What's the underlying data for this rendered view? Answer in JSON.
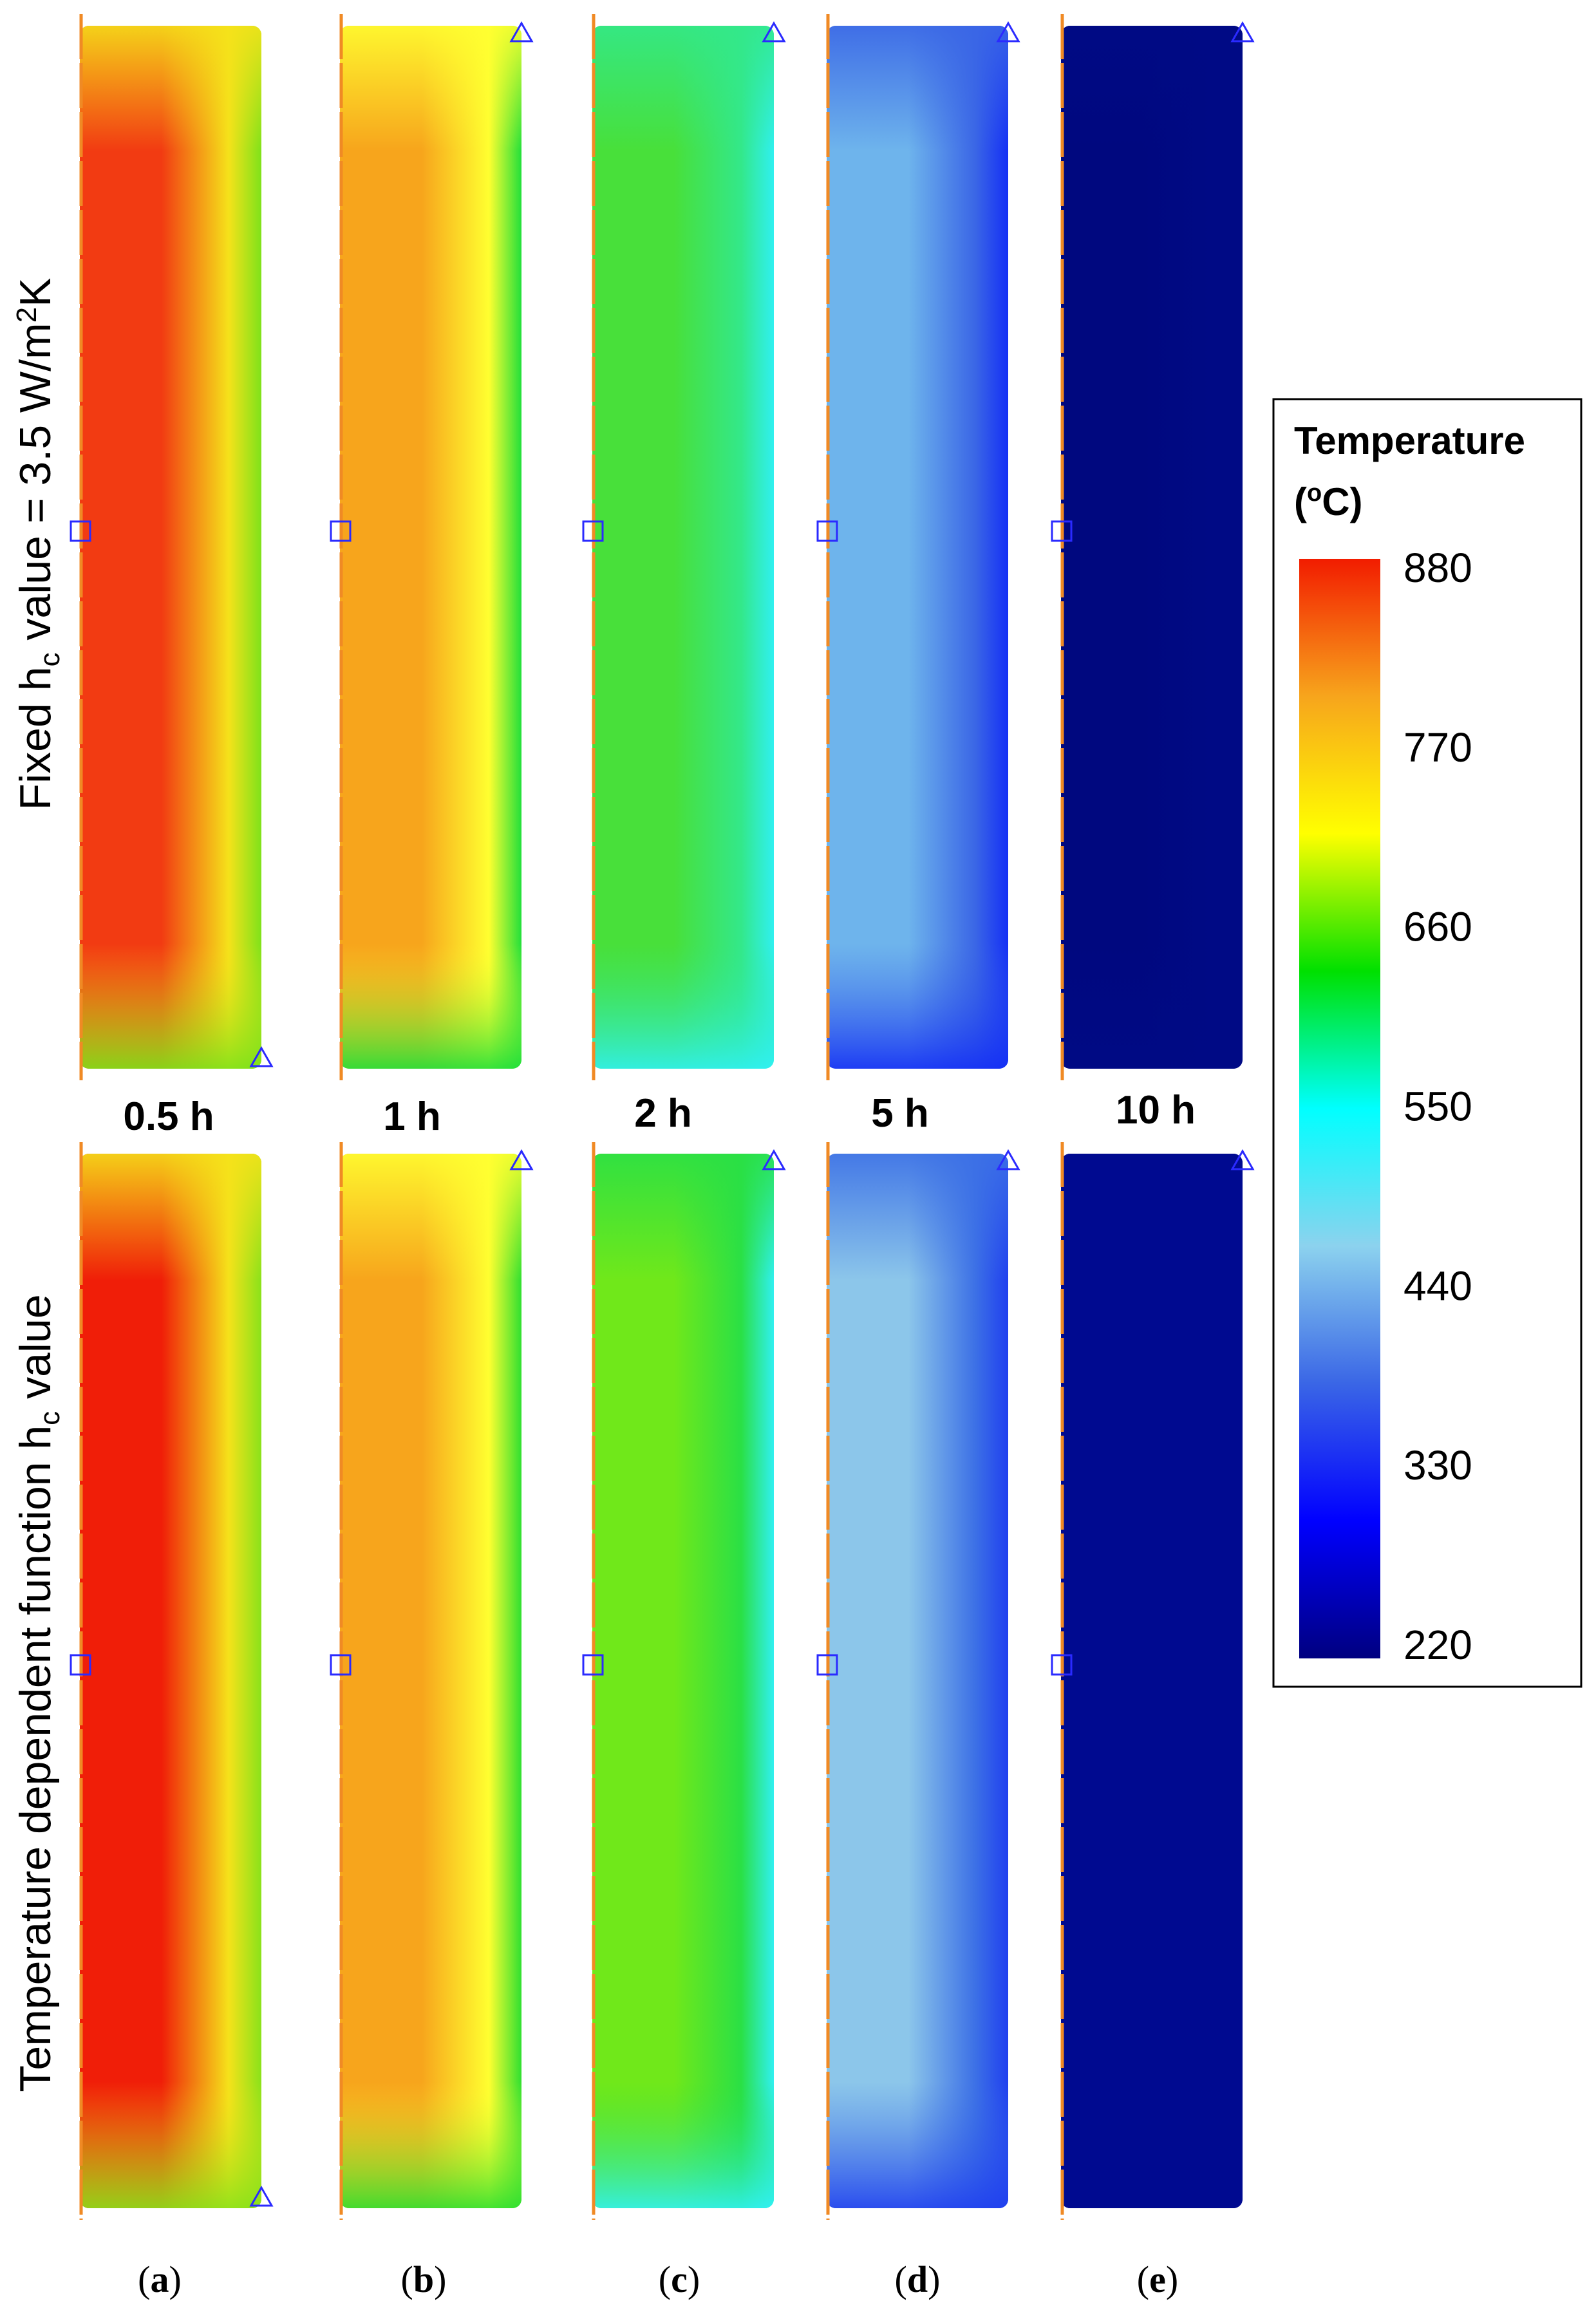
{
  "figure": {
    "row_labels": [
      {
        "pre": "Fixed h",
        "sub": "c",
        "post": " value = 3.5 W/m",
        "sup": "2",
        "post2": "K"
      },
      {
        "pre": "Temperature dependent function h",
        "sub": "c",
        "post": " value",
        "sup": "",
        "post2": ""
      }
    ],
    "time_labels": [
      "0.5 h",
      "1 h",
      "2 h",
      "5 h",
      "10 h"
    ],
    "panel_labels": [
      {
        "open": "(",
        "letter": "a",
        "close": ")"
      },
      {
        "open": "(",
        "letter": "b",
        "close": ")"
      },
      {
        "open": "(",
        "letter": "c",
        "close": ")"
      },
      {
        "open": "(",
        "letter": "d",
        "close": ")"
      },
      {
        "open": "(",
        "letter": "e",
        "close": ")"
      }
    ]
  },
  "legend": {
    "title_line1": "Temperature",
    "title_line2_open": "(",
    "title_line2_sup": "o",
    "title_line2_rest": "C)",
    "ticks": [
      "880",
      "770",
      "660",
      "550",
      "440",
      "330",
      "220"
    ],
    "min": 220,
    "max": 880,
    "colors": [
      "#f21c00",
      "#f7a51c",
      "#ffff00",
      "#00e000",
      "#00ffff",
      "#8cd2ee",
      "#3a66e6",
      "#0000ff",
      "#000080"
    ]
  },
  "panels": {
    "top": [
      {
        "center": "#f23b12",
        "edge": "#f5e21a",
        "corner": "#7fe21a"
      },
      {
        "center": "#f7a51c",
        "edge": "#ffff30",
        "corner": "#22e03a"
      },
      {
        "center": "#48e03a",
        "edge": "#33e88a",
        "corner": "#30f0f0"
      },
      {
        "center": "#6eb4ec",
        "edge": "#3a66e6",
        "corner": "#1530f5"
      },
      {
        "center": "#00087f",
        "edge": "#000a85",
        "corner": "#000a85"
      }
    ],
    "bottom": [
      {
        "center": "#f01e08",
        "edge": "#f5e21a",
        "corner": "#8ae21a"
      },
      {
        "center": "#f7a51c",
        "edge": "#ffff30",
        "corner": "#30e030"
      },
      {
        "center": "#70e81a",
        "edge": "#2ae045",
        "corner": "#30f0f0"
      },
      {
        "center": "#8cc6ea",
        "edge": "#3c70e6",
        "corner": "#2040ef"
      },
      {
        "center": "#000a90",
        "edge": "#000a90",
        "corner": "#000a90"
      }
    ]
  }
}
